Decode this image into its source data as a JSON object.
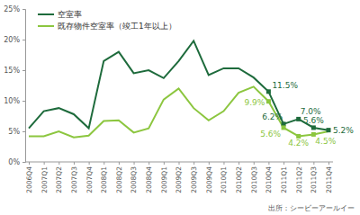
{
  "chart_data": {
    "type": "line",
    "categories": [
      "2006Q4",
      "2007Q1",
      "2007Q2",
      "2007Q3",
      "2007Q4",
      "2008Q1",
      "2008Q2",
      "2008Q3",
      "2008Q4",
      "2009Q1",
      "2009Q2",
      "2009Q3",
      "2009Q4",
      "2010Q1",
      "2010Q2",
      "2010Q3",
      "2010Q4",
      "2011Q1",
      "2011Q2",
      "2011Q3",
      "2011Q4"
    ],
    "series": [
      {
        "name": "空室率",
        "color": "#1e6b3c",
        "marker": "square",
        "values": [
          5.5,
          8.3,
          8.8,
          7.8,
          5.5,
          16.5,
          18.0,
          14.5,
          15.0,
          13.7,
          16.5,
          19.8,
          14.2,
          15.3,
          15.3,
          13.8,
          11.5,
          6.2,
          7.0,
          5.6,
          5.2
        ],
        "value_labels": [
          null,
          null,
          null,
          null,
          null,
          null,
          null,
          null,
          null,
          null,
          null,
          null,
          null,
          null,
          null,
          null,
          "11.5%",
          "6.2%",
          "7.0%",
          "5.6%",
          "5.2%"
        ]
      },
      {
        "name": "既存物件空室率（竣工1年以上）",
        "color": "#8cc63f",
        "marker": "square",
        "values": [
          4.2,
          4.2,
          5.0,
          4.0,
          4.3,
          6.7,
          6.8,
          4.8,
          5.5,
          10.2,
          12.0,
          8.8,
          6.8,
          8.3,
          11.3,
          12.3,
          9.9,
          5.6,
          4.2,
          4.5,
          5.0
        ],
        "value_labels": [
          null,
          null,
          null,
          null,
          null,
          null,
          null,
          null,
          null,
          null,
          null,
          null,
          null,
          null,
          null,
          null,
          "9.9%",
          "5.6%",
          "4.2%",
          "4.5%",
          null
        ]
      }
    ],
    "ylim": [
      0,
      25
    ],
    "yticks": [
      {
        "value": 0,
        "label": "0%"
      },
      {
        "value": 5,
        "label": "5%"
      },
      {
        "value": 10,
        "label": "10%"
      },
      {
        "value": 15,
        "label": "15%"
      },
      {
        "value": 20,
        "label": "20%"
      },
      {
        "value": 25,
        "label": "25%"
      }
    ],
    "grid": false,
    "legend": "top-left",
    "data_labels": true,
    "source": "出所：シービーアールイー"
  }
}
